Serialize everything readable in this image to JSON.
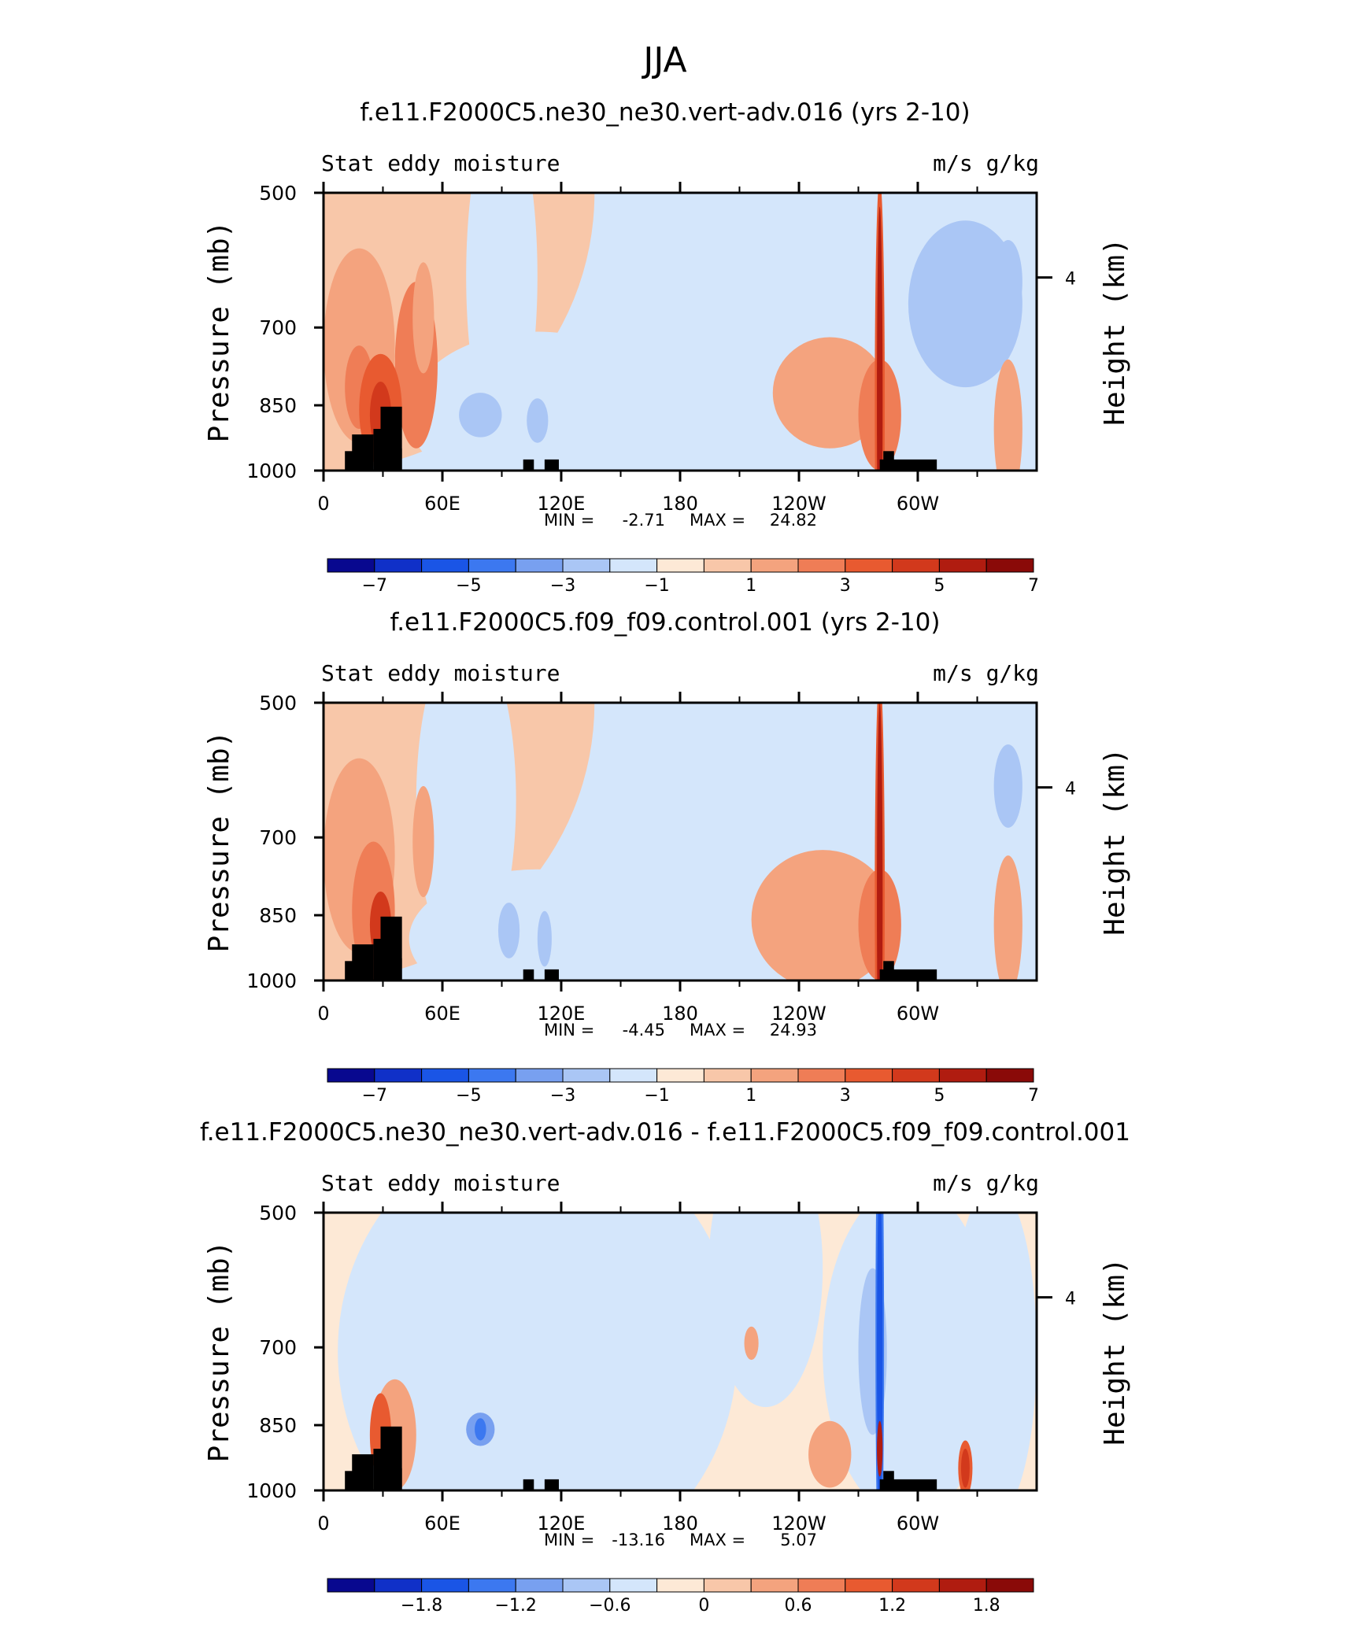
{
  "page_title": "JJA",
  "chart_data": [
    {
      "type": "heatmap",
      "title": "f.e11.F2000C5.ne30_ne30.vert-adv.016 (yrs 2-10)",
      "left_label": "Stat eddy moisture",
      "right_label": "m/s g/kg",
      "ylabel": "Pressure (mb)",
      "ylabel_right": "Height (km)",
      "xticks": [
        "0",
        "60E",
        "120E",
        "180",
        "120W",
        "60W"
      ],
      "yticks": [
        "500",
        "700",
        "850",
        "1000"
      ],
      "yticks_right": [
        "4"
      ],
      "ylim": [
        1000,
        500
      ],
      "stats": {
        "min_label": "MIN =",
        "min": "-2.71",
        "max_label": "MAX =",
        "max": "24.82"
      },
      "colorbar": {
        "labels": [
          "-7",
          "-5",
          "-3",
          "-1",
          "1",
          "3",
          "5",
          "7"
        ]
      },
      "colors": [
        "#08088f",
        "#1030c8",
        "#1a55e6",
        "#3c78f0",
        "#78a0f0",
        "#aac6f5",
        "#d4e6fb",
        "#fde9d6",
        "#f8c7a9",
        "#f4a37e",
        "#ef7d56",
        "#e85a30",
        "#d2391c",
        "#b01c10",
        "#8a0a08"
      ]
    },
    {
      "type": "heatmap",
      "title": "f.e11.F2000C5.f09_f09.control.001 (yrs 2-10)",
      "left_label": "Stat eddy moisture",
      "right_label": "m/s g/kg",
      "ylabel": "Pressure (mb)",
      "ylabel_right": "Height (km)",
      "xticks": [
        "0",
        "60E",
        "120E",
        "180",
        "120W",
        "60W"
      ],
      "yticks": [
        "500",
        "700",
        "850",
        "1000"
      ],
      "yticks_right": [
        "4"
      ],
      "ylim": [
        1000,
        500
      ],
      "stats": {
        "min_label": "MIN =",
        "min": "-4.45",
        "max_label": "MAX =",
        "max": "24.93"
      },
      "colorbar": {
        "labels": [
          "-7",
          "-5",
          "-3",
          "-1",
          "1",
          "3",
          "5",
          "7"
        ]
      },
      "colors": [
        "#08088f",
        "#1030c8",
        "#1a55e6",
        "#3c78f0",
        "#78a0f0",
        "#aac6f5",
        "#d4e6fb",
        "#fde9d6",
        "#f8c7a9",
        "#f4a37e",
        "#ef7d56",
        "#e85a30",
        "#d2391c",
        "#b01c10",
        "#8a0a08"
      ]
    },
    {
      "type": "heatmap",
      "title": "f.e11.F2000C5.ne30_ne30.vert-adv.016 - f.e11.F2000C5.f09_f09.control.001",
      "left_label": "Stat eddy moisture",
      "right_label": "m/s g/kg",
      "ylabel": "Pressure (mb)",
      "ylabel_right": "Height (km)",
      "xticks": [
        "0",
        "60E",
        "120E",
        "180",
        "120W",
        "60W"
      ],
      "yticks": [
        "500",
        "700",
        "850",
        "1000"
      ],
      "yticks_right": [
        "4"
      ],
      "ylim": [
        1000,
        500
      ],
      "stats": {
        "min_label": "MIN =",
        "min": "-13.16",
        "max_label": "MAX =",
        "max": "5.07"
      },
      "colorbar": {
        "labels": [
          "-1.8",
          "-1.2",
          "-0.6",
          "0",
          "0.6",
          "1.2",
          "1.8"
        ]
      },
      "colors": [
        "#08088f",
        "#1030c8",
        "#1a55e6",
        "#3c78f0",
        "#78a0f0",
        "#aac6f5",
        "#d4e6fb",
        "#fde9d6",
        "#f8c7a9",
        "#f4a37e",
        "#ef7d56",
        "#e85a30",
        "#d2391c",
        "#b01c10",
        "#8a0a08"
      ]
    }
  ]
}
